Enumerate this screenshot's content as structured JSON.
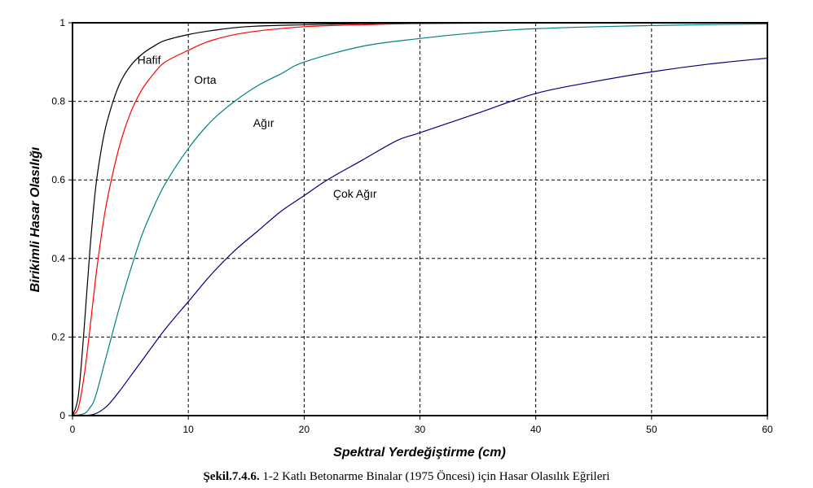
{
  "caption": {
    "bold": "Şekil.7.4.6.",
    "text": " 1-2 Katlı Betonarme Binalar (1975 Öncesi) için Hasar Olasılık Eğrileri"
  },
  "chart_data": {
    "type": "line",
    "xlabel": "Spektral Yerdeğiştirme (cm)",
    "ylabel": "Birikimli Hasar Olasılığı",
    "xlim": [
      0,
      60
    ],
    "ylim": [
      0,
      1
    ],
    "x_ticks": [
      0,
      10,
      20,
      30,
      40,
      50,
      60
    ],
    "y_ticks": [
      0,
      0.2,
      0.4,
      0.6,
      0.8,
      1
    ],
    "y_tick_labels": [
      "0",
      "0.2",
      "0.4",
      "0.6",
      "0.8",
      "1"
    ],
    "grid": true,
    "grid_style": "dashed",
    "series": [
      {
        "name": "Hafif",
        "color": "#000000",
        "x": [
          0,
          0.5,
          1,
          1.5,
          2,
          2.5,
          3,
          4,
          5,
          6,
          7,
          8,
          10,
          12,
          15,
          20,
          25,
          30,
          40,
          60
        ],
        "y": [
          0,
          0.05,
          0.22,
          0.42,
          0.58,
          0.68,
          0.75,
          0.84,
          0.89,
          0.92,
          0.94,
          0.955,
          0.97,
          0.98,
          0.99,
          0.995,
          0.998,
          0.999,
          1,
          1
        ]
      },
      {
        "name": "Orta",
        "color": "#ff0000",
        "x": [
          0,
          0.5,
          1,
          1.5,
          2,
          2.5,
          3,
          4,
          5,
          6,
          7,
          8,
          10,
          12,
          15,
          20,
          25,
          30,
          40,
          60
        ],
        "y": [
          0,
          0.02,
          0.1,
          0.22,
          0.35,
          0.46,
          0.55,
          0.68,
          0.77,
          0.83,
          0.87,
          0.9,
          0.93,
          0.955,
          0.975,
          0.99,
          0.995,
          0.998,
          1,
          1
        ]
      },
      {
        "name": "Ağır",
        "color": "#008080",
        "x": [
          0,
          1,
          1.5,
          2,
          3,
          4,
          5,
          6,
          7,
          8,
          10,
          12,
          14,
          16,
          18,
          20,
          25,
          30,
          35,
          40,
          50,
          60
        ],
        "y": [
          0,
          0.005,
          0.02,
          0.05,
          0.16,
          0.27,
          0.37,
          0.46,
          0.53,
          0.59,
          0.68,
          0.75,
          0.8,
          0.84,
          0.87,
          0.9,
          0.94,
          0.96,
          0.975,
          0.985,
          0.993,
          0.997
        ]
      },
      {
        "name": "Çok Ağır",
        "color": "#000080",
        "x": [
          0,
          1,
          2,
          3,
          4,
          5,
          6,
          8,
          10,
          12,
          14,
          16,
          18,
          20,
          22,
          25,
          28,
          30,
          35,
          40,
          45,
          50,
          55,
          60
        ],
        "y": [
          0,
          0.0,
          0.005,
          0.025,
          0.06,
          0.1,
          0.14,
          0.22,
          0.29,
          0.36,
          0.42,
          0.47,
          0.52,
          0.56,
          0.6,
          0.65,
          0.7,
          0.72,
          0.77,
          0.82,
          0.85,
          0.875,
          0.895,
          0.91
        ]
      }
    ],
    "annotations": [
      {
        "text": "Hafif",
        "x": 5.6,
        "y": 0.895
      },
      {
        "text": "Orta",
        "x": 10.5,
        "y": 0.845
      },
      {
        "text": "Ağır",
        "x": 15.6,
        "y": 0.735
      },
      {
        "text": "Çok Ağır",
        "x": 22.5,
        "y": 0.555
      }
    ]
  }
}
